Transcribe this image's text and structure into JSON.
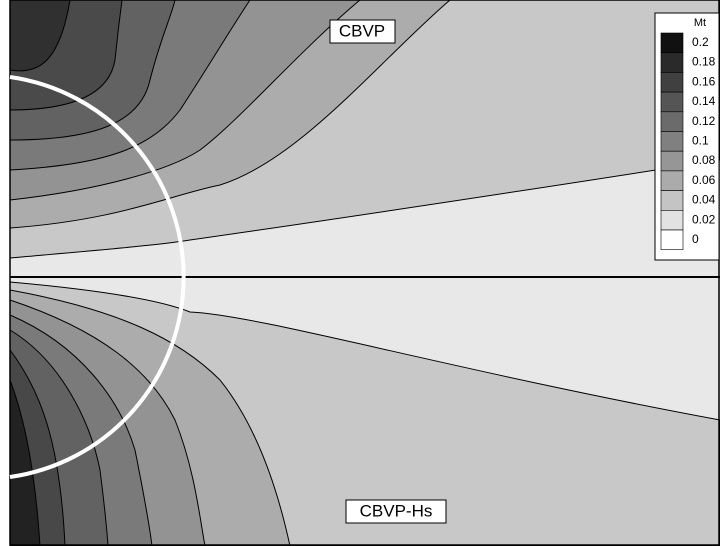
{
  "chart_data": {
    "type": "contour",
    "annotations": [
      "CBVP",
      "CBVP-Hs"
    ],
    "colorbar": {
      "title": "Mt",
      "levels": [
        0.2,
        0.18,
        0.16,
        0.14,
        0.12,
        0.1,
        0.08,
        0.06,
        0.04,
        0.02,
        0
      ],
      "colors": [
        "#111111",
        "#2a2a2a",
        "#404040",
        "#555555",
        "#6b6b6b",
        "#808080",
        "#969696",
        "#ababab",
        "#c4c4c4",
        "#e2e2e2",
        "#ffffff"
      ]
    }
  }
}
